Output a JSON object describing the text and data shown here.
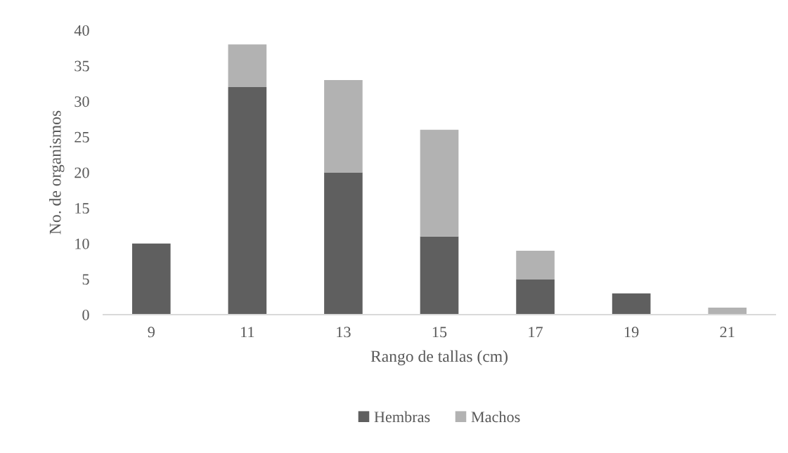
{
  "chart_data": {
    "type": "bar",
    "stacked": true,
    "xlabel": "Rango de tallas (cm)",
    "ylabel": "No. de organismos",
    "categories": [
      "9",
      "11",
      "13",
      "15",
      "17",
      "19",
      "21"
    ],
    "series": [
      {
        "name": "Hembras",
        "color": "#5f5f5f",
        "values": [
          10,
          32,
          20,
          11,
          5,
          3,
          null
        ]
      },
      {
        "name": "Machos",
        "color": "#b2b2b2",
        "values": [
          null,
          6,
          13,
          15,
          4,
          null,
          1
        ]
      }
    ],
    "ylim": [
      0,
      40
    ],
    "yticks": [
      0,
      5,
      10,
      15,
      20,
      25,
      30,
      35,
      40
    ],
    "grid": false,
    "legend": "bottom"
  }
}
